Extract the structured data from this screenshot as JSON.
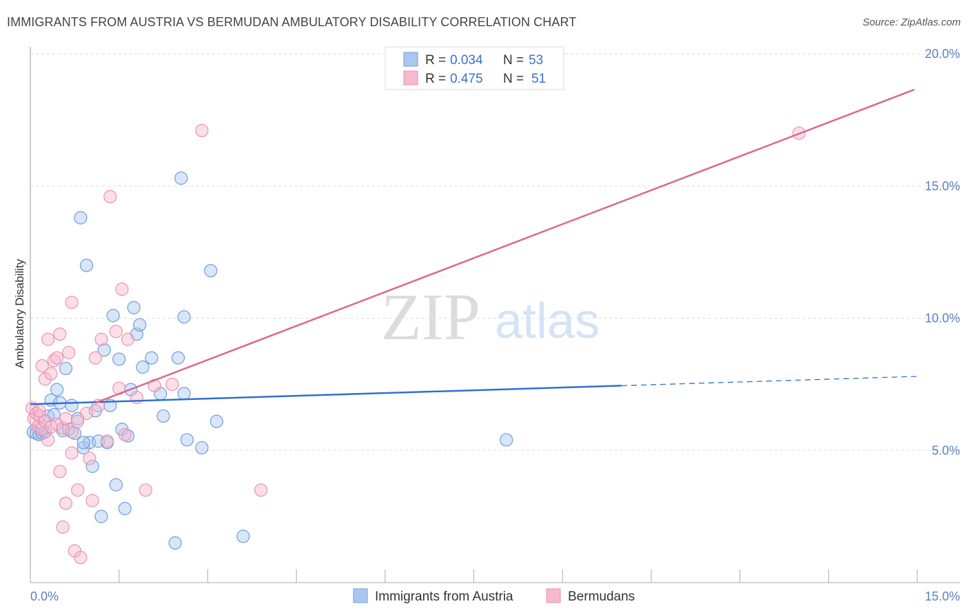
{
  "title": "IMMIGRANTS FROM AUSTRIA VS BERMUDAN AMBULATORY DISABILITY CORRELATION CHART",
  "source": "Source: ZipAtlas.com",
  "watermark": {
    "zip": "ZIP",
    "atlas": "atlas"
  },
  "colors": {
    "blue_fill": "#a9c8f0",
    "blue_stroke": "#6f9be0",
    "blue_line": "#2f6fd0",
    "pink_fill": "#f7b9cc",
    "pink_stroke": "#ee8fae",
    "pink_line": "#e0648f",
    "grid": "#dddddd",
    "tick_text": "#5b7fc4"
  },
  "chart_data": {
    "type": "scatter",
    "title": "IMMIGRANTS FROM AUSTRIA VS BERMUDAN AMBULATORY DISABILITY CORRELATION CHART",
    "xlabel": "",
    "ylabel": "Ambulatory Disability",
    "xlim": [
      0,
      15
    ],
    "ylim": [
      0,
      20.5
    ],
    "x_tick_labels": [
      {
        "value": 0,
        "label": "0.0%"
      },
      {
        "value": 15,
        "label": "15.0%"
      }
    ],
    "y_tick_labels": [
      {
        "value": 5,
        "label": "5.0%"
      },
      {
        "value": 10,
        "label": "10.0%"
      },
      {
        "value": 15,
        "label": "15.0%"
      },
      {
        "value": 20,
        "label": "20.0%"
      }
    ],
    "legend": [
      {
        "series": "Immigrants from Austria",
        "r_label": "R =",
        "r": "0.034",
        "n_label": "N =",
        "n": "53"
      },
      {
        "series": "Bermudans",
        "r_label": "R =",
        "r": "0.475",
        "n_label": "N =",
        "n": "51"
      }
    ],
    "series": [
      {
        "name": "Immigrants from Austria",
        "color": "blue",
        "trend": {
          "x0": 0,
          "y0": 6.75,
          "x1": 10.0,
          "y1": 7.45,
          "dash_x1": 15.0,
          "dash_y1": 7.8
        },
        "points": [
          [
            0.05,
            5.7
          ],
          [
            0.1,
            5.65
          ],
          [
            0.15,
            5.6
          ],
          [
            0.2,
            5.65
          ],
          [
            0.25,
            5.7
          ],
          [
            0.3,
            6.3
          ],
          [
            0.35,
            6.9
          ],
          [
            0.4,
            6.35
          ],
          [
            0.45,
            7.3
          ],
          [
            0.5,
            6.8
          ],
          [
            0.55,
            5.75
          ],
          [
            0.6,
            8.1
          ],
          [
            0.65,
            5.8
          ],
          [
            0.7,
            6.7
          ],
          [
            0.75,
            5.65
          ],
          [
            0.8,
            6.2
          ],
          [
            0.85,
            13.8
          ],
          [
            0.9,
            5.1
          ],
          [
            0.95,
            12.0
          ],
          [
            1.0,
            5.3
          ],
          [
            1.05,
            4.4
          ],
          [
            1.1,
            6.5
          ],
          [
            1.15,
            5.35
          ],
          [
            1.2,
            2.5
          ],
          [
            1.25,
            8.8
          ],
          [
            1.3,
            5.3
          ],
          [
            1.35,
            6.7
          ],
          [
            1.4,
            10.1
          ],
          [
            1.45,
            3.7
          ],
          [
            1.5,
            8.45
          ],
          [
            1.55,
            5.8
          ],
          [
            1.6,
            2.8
          ],
          [
            1.65,
            5.55
          ],
          [
            1.7,
            7.3
          ],
          [
            1.75,
            10.4
          ],
          [
            1.8,
            9.4
          ],
          [
            1.85,
            9.75
          ],
          [
            1.9,
            8.15
          ],
          [
            2.05,
            8.5
          ],
          [
            2.2,
            7.15
          ],
          [
            2.25,
            6.3
          ],
          [
            2.45,
            1.5
          ],
          [
            2.5,
            8.5
          ],
          [
            2.55,
            15.3
          ],
          [
            2.6,
            7.15
          ],
          [
            2.6,
            10.05
          ],
          [
            2.65,
            5.4
          ],
          [
            2.9,
            5.1
          ],
          [
            3.05,
            11.8
          ],
          [
            3.15,
            6.1
          ],
          [
            3.6,
            1.75
          ],
          [
            8.05,
            5.4
          ],
          [
            0.9,
            5.3
          ]
        ]
      },
      {
        "name": "Bermudans",
        "color": "pink",
        "trend": {
          "x0": 1.1,
          "y0": 6.8,
          "x1": 14.95,
          "y1": 18.65
        },
        "points": [
          [
            0.03,
            6.6
          ],
          [
            0.06,
            6.2
          ],
          [
            0.1,
            6.4
          ],
          [
            0.13,
            5.9
          ],
          [
            0.16,
            6.3
          ],
          [
            0.2,
            5.8
          ],
          [
            0.2,
            8.2
          ],
          [
            0.25,
            7.7
          ],
          [
            0.25,
            6.1
          ],
          [
            0.3,
            5.4
          ],
          [
            0.3,
            9.2
          ],
          [
            0.35,
            5.9
          ],
          [
            0.35,
            7.9
          ],
          [
            0.4,
            8.4
          ],
          [
            0.45,
            6.0
          ],
          [
            0.5,
            9.4
          ],
          [
            0.5,
            4.2
          ],
          [
            0.55,
            5.85
          ],
          [
            0.55,
            2.1
          ],
          [
            0.6,
            6.2
          ],
          [
            0.6,
            3.0
          ],
          [
            0.65,
            8.7
          ],
          [
            0.7,
            4.9
          ],
          [
            0.7,
            5.7
          ],
          [
            0.75,
            1.2
          ],
          [
            0.8,
            6.1
          ],
          [
            0.8,
            3.5
          ],
          [
            0.85,
            0.95
          ],
          [
            0.7,
            10.6
          ],
          [
            0.95,
            6.4
          ],
          [
            1.0,
            4.7
          ],
          [
            1.05,
            3.1
          ],
          [
            1.1,
            8.5
          ],
          [
            1.15,
            6.7
          ],
          [
            1.2,
            9.2
          ],
          [
            1.3,
            5.35
          ],
          [
            1.35,
            14.6
          ],
          [
            1.45,
            9.5
          ],
          [
            1.5,
            7.35
          ],
          [
            1.55,
            11.1
          ],
          [
            1.6,
            5.6
          ],
          [
            1.65,
            9.2
          ],
          [
            1.8,
            7.0
          ],
          [
            1.95,
            3.5
          ],
          [
            2.1,
            7.45
          ],
          [
            2.4,
            7.5
          ],
          [
            2.9,
            17.1
          ],
          [
            3.9,
            3.5
          ],
          [
            13.0,
            17.0
          ],
          [
            0.15,
            6.5
          ],
          [
            0.45,
            8.5
          ]
        ]
      }
    ]
  }
}
